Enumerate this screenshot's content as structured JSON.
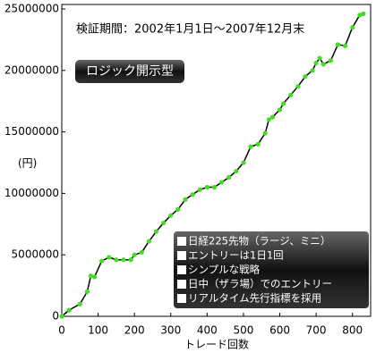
{
  "chart_data": {
    "type": "line",
    "title": "検証期間：2002年1月1日～2007年12月末",
    "badge": "ロジック開示型",
    "annotations": [
      "日経225先物（ラージ、ミニ）",
      "エントリーは1日1回",
      "シンプルな戦略",
      "日中（ザラ場）でのエントリー",
      "リアルタイム先行指標を採用"
    ],
    "xlabel": "トレード回数",
    "ylabel": "(円)",
    "x": [
      0,
      20,
      50,
      70,
      80,
      90,
      110,
      130,
      150,
      170,
      190,
      200,
      220,
      240,
      260,
      280,
      300,
      320,
      340,
      360,
      380,
      400,
      420,
      440,
      460,
      480,
      500,
      520,
      540,
      560,
      570,
      580,
      600,
      610,
      630,
      650,
      670,
      690,
      700,
      710,
      720,
      740,
      760,
      780,
      800,
      820,
      830
    ],
    "series": [
      {
        "color": "#000000",
        "marker_color": "#44dd22",
        "values": [
          0,
          500000,
          1000000,
          2000000,
          3300000,
          3200000,
          4500000,
          4800000,
          4600000,
          4600000,
          4600000,
          5000000,
          5200000,
          6100000,
          6900000,
          7600000,
          8200000,
          8700000,
          9500000,
          9900000,
          10300000,
          10500000,
          10500000,
          10900000,
          11300000,
          11800000,
          12500000,
          13800000,
          14000000,
          14900000,
          16000000,
          16200000,
          16800000,
          17300000,
          18000000,
          18700000,
          19500000,
          20000000,
          20600000,
          21000000,
          20500000,
          20800000,
          22100000,
          22000000,
          23500000,
          24500000,
          24600000
        ]
      }
    ],
    "xlim": [
      0,
      850
    ],
    "ylim": [
      0,
      25000000
    ],
    "xticks": [
      0,
      100,
      200,
      300,
      400,
      500,
      600,
      700,
      800
    ],
    "yticks": [
      0,
      5000000,
      10000000,
      15000000,
      20000000,
      25000000
    ]
  }
}
